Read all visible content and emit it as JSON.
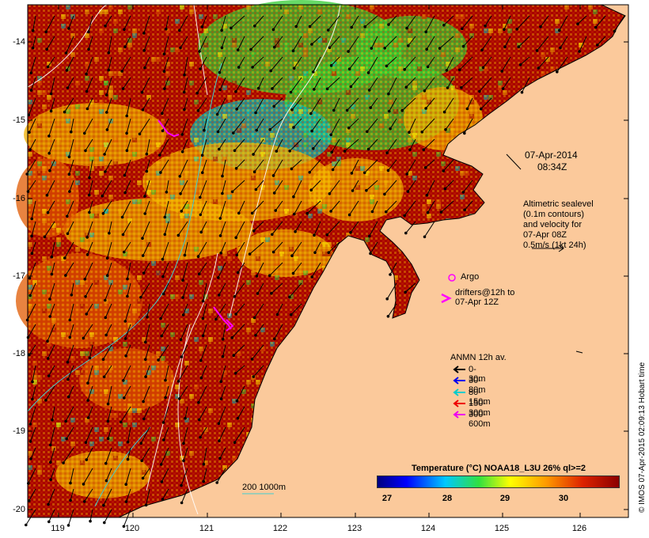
{
  "map": {
    "lat_ticks": [
      "-14",
      "-15",
      "-16",
      "-17",
      "-18",
      "-19",
      "-20"
    ],
    "lon_ticks": [
      "119",
      "120",
      "121",
      "122",
      "123",
      "124",
      "125",
      "126"
    ],
    "colors": {
      "land": "#f9c89c",
      "hot": "#990000",
      "warm": "#e05a00",
      "mid": "#f0b000",
      "green": "#33cc33",
      "cyan": "#00c0c0"
    }
  },
  "timestamp": {
    "date": "07-Apr-2014",
    "time": "08:34Z"
  },
  "altimetry_note": {
    "line1": "Altimetric sealevel",
    "line2": "(0.1m contours)",
    "line3": "and velocity for",
    "line4": "07-Apr 08Z",
    "line5": "0.5m/s (1kt 24h)"
  },
  "argo": {
    "label": "Argo"
  },
  "drifters": {
    "line1": "drifters@12h to",
    "line2": "07-Apr 12Z"
  },
  "anmn": {
    "title": "ANMN 12h av.",
    "items": [
      {
        "label": "0-30m",
        "color": "#000000"
      },
      {
        "label": "30-80m",
        "color": "#0000ee"
      },
      {
        "label": "80-150m",
        "color": "#00cccc"
      },
      {
        "label": "150-300m",
        "color": "#ee0000"
      },
      {
        "label": "300-600m",
        "color": "#ee00ee"
      }
    ]
  },
  "isobath_label": "200  1000m",
  "colorbar": {
    "title": "Temperature (°C) NOAA18_L3U 26% ql>=2",
    "ticks": [
      "27",
      "28",
      "29",
      "30"
    ]
  },
  "credit": "© IMOS 07-Apr-2015 02:09:13 Hobart time"
}
